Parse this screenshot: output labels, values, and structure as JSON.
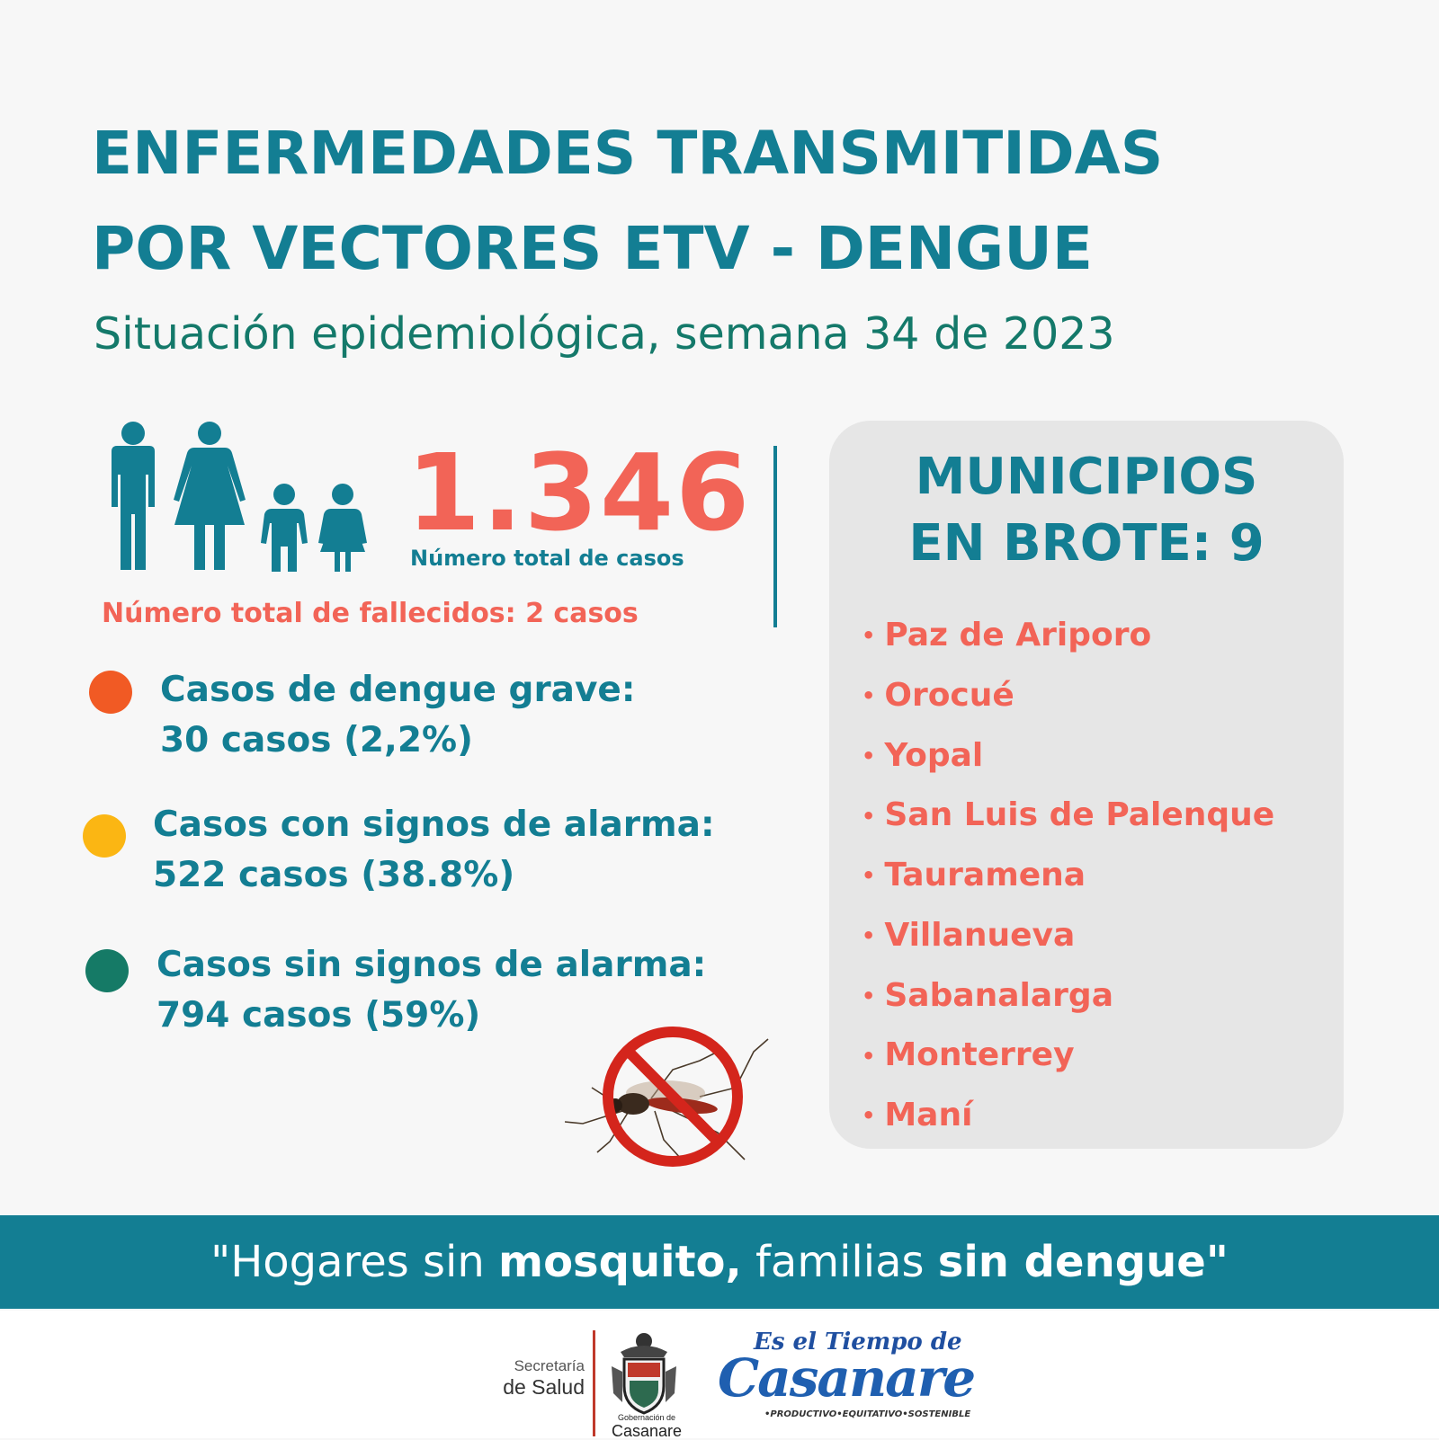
{
  "title": {
    "line1": "ENFERMEDADES TRANSMITIDAS",
    "line2": "POR VECTORES ETV - DENGUE"
  },
  "subtitle": "Situación epidemiológica, semana 34 de 2023",
  "summary": {
    "total_cases": "1.346",
    "total_cases_label": "Número total de casos",
    "deaths": "Número total de fallecidos: 2 casos"
  },
  "stats": [
    {
      "label": "Casos de dengue grave:",
      "value": "30 casos (2,2%)",
      "color": "#f15a24"
    },
    {
      "label": "Casos con signos de alarma:",
      "value": "522 casos (38.8%)",
      "color": "#fbb613"
    },
    {
      "label": "Casos sin signos de alarma:",
      "value": "794 casos (59%)",
      "color": "#157a66"
    }
  ],
  "municipios": {
    "heading_line1": "MUNICIPIOS",
    "heading_line2": "EN BROTE: 9",
    "items": [
      "Paz de Ariporo",
      "Orocué",
      "Yopal",
      "San Luis de Palenque",
      "Tauramena",
      "Villanueva",
      "Sabanalarga",
      "Monterrey",
      "Maní"
    ]
  },
  "banner": {
    "part1": "\"Hogares sin ",
    "bold1": "mosquito,",
    "part2": " familias ",
    "bold2": "sin dengue\""
  },
  "footer": {
    "secretaria_line1": "Secretaría",
    "secretaria_line2": "de Salud",
    "gobernacion_small": "Gobernación de",
    "gobernacion": "Casanare",
    "logo_line1": "Es el Tiempo de",
    "logo_line2": "Casanare",
    "logo_tagline": "•PRODUCTIVO•EQUITATIVO•SOSTENIBLE"
  },
  "icons": [
    "family-icon",
    "no-mosquito-icon",
    "crest-icon"
  ],
  "colors": {
    "teal": "#137e93",
    "coral": "#f26457",
    "green": "#14796a",
    "panel": "#e6e6e6"
  }
}
